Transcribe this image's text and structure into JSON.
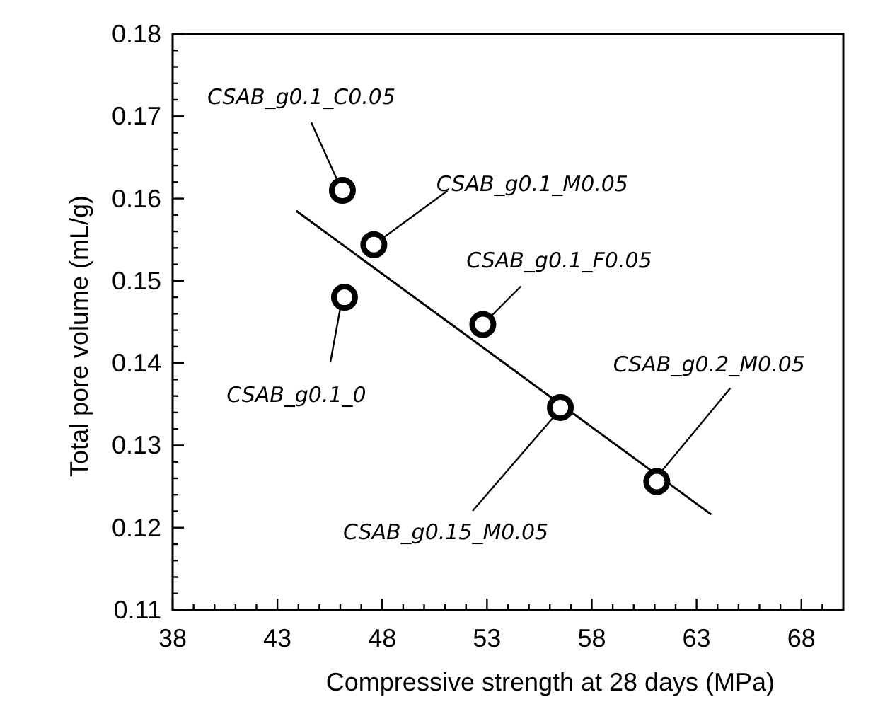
{
  "chart_data": {
    "type": "scatter",
    "xlabel": "Compressive strength at 28 days (MPa)",
    "ylabel": "Total pore volume (mL/g)",
    "xlim": [
      38,
      70
    ],
    "ylim": [
      0.11,
      0.18
    ],
    "xticks": [
      38,
      {
        "value": 39,
        "label": null
      },
      {
        "value": 40,
        "label": null
      },
      {
        "value": 41,
        "label": null
      },
      {
        "value": 42,
        "label": null
      },
      43,
      {
        "value": 44,
        "label": null
      },
      {
        "value": 45,
        "label": null
      },
      {
        "value": 46,
        "label": null
      },
      {
        "value": 47,
        "label": null
      },
      48,
      {
        "value": 49,
        "label": null
      },
      {
        "value": 50,
        "label": null
      },
      {
        "value": 51,
        "label": null
      },
      {
        "value": 52,
        "label": null
      },
      53,
      {
        "value": 54,
        "label": null
      },
      {
        "value": 55,
        "label": null
      },
      {
        "value": 56,
        "label": null
      },
      {
        "value": 57,
        "label": null
      },
      58,
      {
        "value": 59,
        "label": null
      },
      {
        "value": 60,
        "label": null
      },
      {
        "value": 61,
        "label": null
      },
      {
        "value": 62,
        "label": null
      },
      63,
      {
        "value": 64,
        "label": null
      },
      {
        "value": 65,
        "label": null
      },
      {
        "value": 66,
        "label": null
      },
      {
        "value": 67,
        "label": null
      },
      68,
      {
        "value": 69,
        "label": null
      }
    ],
    "yticks": [
      0.11,
      {
        "value": 0.112,
        "label": null
      },
      {
        "value": 0.114,
        "label": null
      },
      {
        "value": 0.116,
        "label": null
      },
      {
        "value": 0.118,
        "label": null
      },
      0.12,
      {
        "value": 0.122,
        "label": null
      },
      {
        "value": 0.124,
        "label": null
      },
      {
        "value": 0.126,
        "label": null
      },
      {
        "value": 0.128,
        "label": null
      },
      0.13,
      {
        "value": 0.132,
        "label": null
      },
      {
        "value": 0.134,
        "label": null
      },
      {
        "value": 0.136,
        "label": null
      },
      {
        "value": 0.138,
        "label": null
      },
      0.14,
      {
        "value": 0.142,
        "label": null
      },
      {
        "value": 0.144,
        "label": null
      },
      {
        "value": 0.146,
        "label": null
      },
      {
        "value": 0.148,
        "label": null
      },
      0.15,
      {
        "value": 0.152,
        "label": null
      },
      {
        "value": 0.154,
        "label": null
      },
      {
        "value": 0.156,
        "label": null
      },
      {
        "value": 0.158,
        "label": null
      },
      0.16,
      {
        "value": 0.162,
        "label": null
      },
      {
        "value": 0.164,
        "label": null
      },
      {
        "value": 0.166,
        "label": null
      },
      {
        "value": 0.168,
        "label": null
      },
      0.17,
      {
        "value": 0.172,
        "label": null
      },
      {
        "value": 0.174,
        "label": null
      },
      {
        "value": 0.176,
        "label": null
      },
      {
        "value": 0.178,
        "label": null
      },
      0.18
    ],
    "grid": false,
    "marker": "circle",
    "series": [
      {
        "color": "#000000",
        "x": [
          46.1,
          47.6,
          46.2,
          52.8,
          56.5,
          61.1
        ],
        "values": [
          0.161,
          0.1544,
          0.148,
          0.1447,
          0.1346,
          0.1256
        ]
      },
      {
        "type": "line",
        "color": "#000000",
        "marker": "none",
        "line_style": "solid",
        "x": [
          43.9,
          63.7
        ],
        "values": [
          0.1585,
          0.1216
        ]
      }
    ],
    "annotations": [
      {
        "text": "CSAB_g0.1_C0.05",
        "x": 46.1,
        "y": 0.161
      },
      {
        "text": "CSAB_g0.1_M0.05",
        "x": 47.6,
        "y": 0.1544
      },
      {
        "text": "CSAB_g0.1_0",
        "x": 46.2,
        "y": 0.148
      },
      {
        "text": "CSAB_g0.1_F0.05",
        "x": 52.8,
        "y": 0.1447
      },
      {
        "text": "CSAB_g0.15_M0.05",
        "x": 56.5,
        "y": 0.1346
      },
      {
        "text": "CSAB_g0.2_M0.05",
        "x": 61.1,
        "y": 0.1256
      }
    ]
  }
}
